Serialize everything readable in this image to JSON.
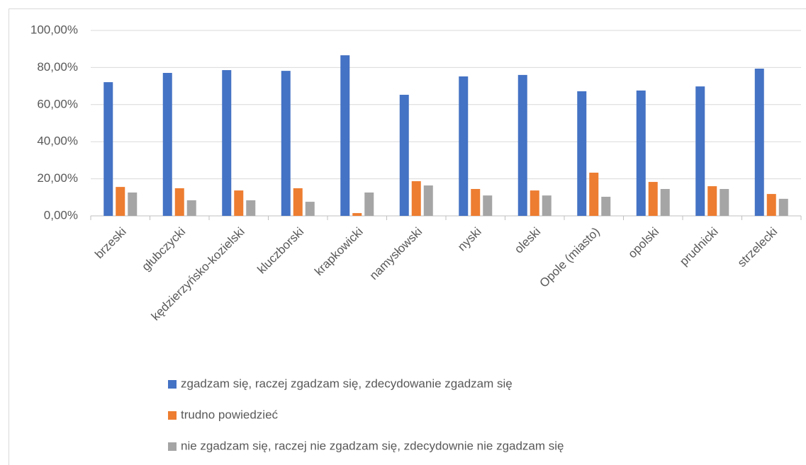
{
  "chart_data": {
    "type": "bar",
    "categories": [
      "brzeski",
      "głubczycki",
      "kędzierzyńsko-kozielski",
      "kluczborski",
      "krapkowicki",
      "namysłowski",
      "nyski",
      "oleski",
      "Opole (miasto)",
      "opolski",
      "prudnicki",
      "strzelecki"
    ],
    "series": [
      {
        "name": "zgadzam się, raczej zgadzam się, zdecydowanie zgadzam się",
        "color": "#4472c4",
        "values": [
          72.1,
          77.1,
          78.6,
          78.2,
          86.6,
          65.3,
          75.2,
          76.0,
          67.2,
          67.6,
          69.8,
          79.4
        ]
      },
      {
        "name": "trudno powiedzieć",
        "color": "#ed7d31",
        "values": [
          15.6,
          14.9,
          13.7,
          14.9,
          1.5,
          18.7,
          14.5,
          13.7,
          23.3,
          18.3,
          16.0,
          11.8
        ]
      },
      {
        "name": "nie zgadzam się, raczej nie zgadzam się, zdecydownie nie zgadzam się",
        "color": "#a5a5a5",
        "values": [
          12.6,
          8.4,
          8.4,
          7.6,
          12.6,
          16.4,
          11.0,
          11.0,
          10.3,
          14.5,
          14.5,
          9.2
        ]
      }
    ],
    "ylim": [
      0,
      100
    ],
    "yticks": [
      {
        "value": 0,
        "label": "0,00%"
      },
      {
        "value": 20,
        "label": "20,00%"
      },
      {
        "value": 40,
        "label": "40,00%"
      },
      {
        "value": 60,
        "label": "60,00%"
      },
      {
        "value": 80,
        "label": "80,00%"
      },
      {
        "value": 100,
        "label": "100,00%"
      }
    ],
    "grid": true,
    "legend": "bottom"
  }
}
